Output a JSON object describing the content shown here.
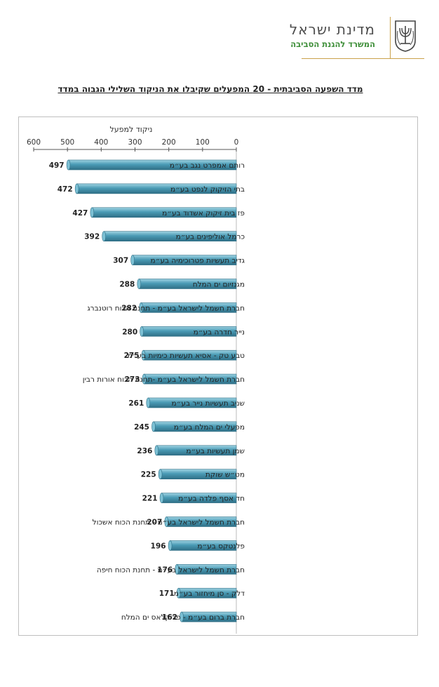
{
  "header": {
    "title": "מדינת ישראל",
    "subtitle": "המשרד להגנת הסביבה",
    "emblem_icon": "state-emblem-icon"
  },
  "chart_data": {
    "type": "bar",
    "orientation": "horizontal",
    "title": "מדד השפעה הסביבתית - 20 המפעלים שקיבלו את הניקוד השלילי הגבוה במדד",
    "axis_label": "ניקוד למפעל",
    "xlim": [
      0,
      600
    ],
    "ticks": [
      600,
      500,
      400,
      300,
      200,
      100,
      0
    ],
    "x_direction": "reversed",
    "grid": false,
    "bar_color": "#4a9bb5",
    "categories": [
      "רותם אמפרט נגב בע״מ",
      "בתי הזיקוק לנפט בע״מ",
      "פז בית זיקוק אשדוד בע״מ",
      "כרמל אוליפינים בע״מ",
      "גדיב תעשיות פטרוכימיה בע״מ",
      "מגנזיום ים המלח",
      "חברת חשמל לישראל בע״מ - תחנת הכוח רוטנברג",
      "נייר חדרה בע״מ",
      "טבע טק - אסיא תעשיות כימיות בע״מ",
      "חברת חשמל לישראל בע״מ -תחנת הכוח אורות רבין",
      "שניב תעשיות נייר בע״מ",
      "מפעלי ים המלח בע״מ",
      "שמן תעשיות בע״מ",
      "מט״ש שוקת",
      "חד אסף פלדה בע״מ",
      "חברת חשמל לישראל בע״מ - תחנת הכוח אשכול",
      "פלנטקס בע״מ",
      "חברת חשמל לישראל בע״מ - תחנת הכוח חיפה",
      "דלק - סן מיחזור בע״מ",
      "חברת ברום בע״מ - פריקלאס ים המלח"
    ],
    "values": [
      497,
      472,
      427,
      392,
      307,
      288,
      282,
      280,
      275,
      273,
      261,
      245,
      236,
      225,
      221,
      207,
      196,
      176,
      171,
      162
    ]
  }
}
